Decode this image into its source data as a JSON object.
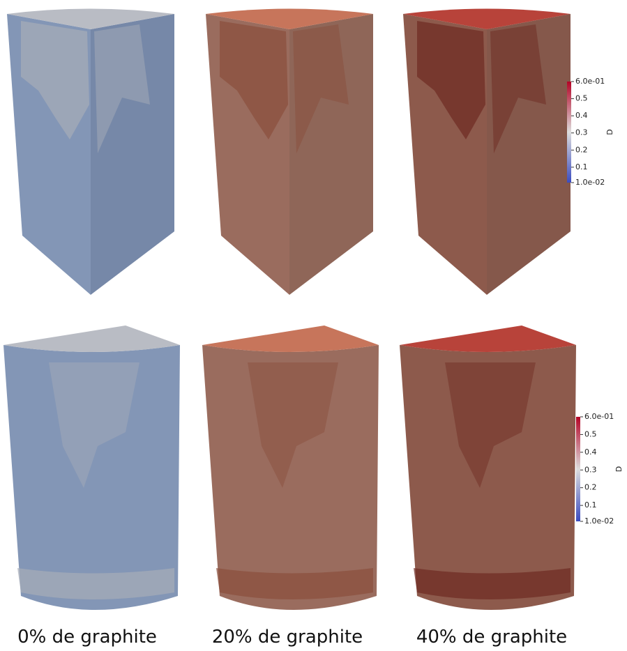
{
  "colorbars": [
    {
      "title": "D",
      "range": [
        0.01,
        0.6
      ],
      "ticks": [
        {
          "value": 0.6,
          "label": "6.0e-01"
        },
        0.5,
        0.4,
        0.3,
        0.2,
        0.1,
        {
          "value": 0.01,
          "label": "1.0e-02"
        }
      ]
    },
    {
      "title": "D",
      "range": [
        0.01,
        0.6
      ],
      "ticks": [
        {
          "value": 0.6,
          "label": "6.0e-01"
        },
        0.5,
        0.4,
        0.3,
        0.2,
        0.1,
        {
          "value": 0.01,
          "label": "1.0e-02"
        }
      ]
    }
  ],
  "captions": [
    "0% de graphite",
    "20% de graphite",
    "40% de graphite"
  ]
}
